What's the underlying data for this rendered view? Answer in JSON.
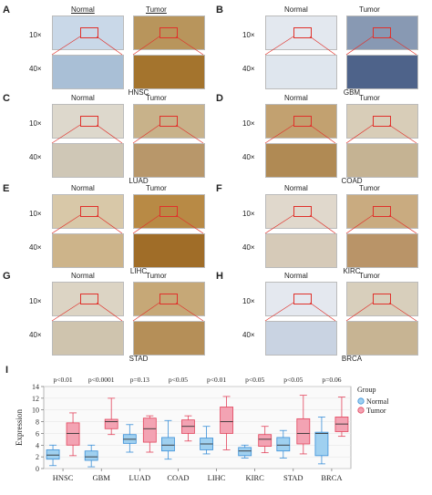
{
  "colors": {
    "normal_fill": "#9fd0f0",
    "normal_edge": "#3a8fd8",
    "tumor_fill": "#f3a3b3",
    "tumor_edge": "#e2445c",
    "zoom_line": "#e0312b",
    "grid": "#e6e6e6"
  },
  "panels": [
    {
      "letter": "A",
      "normal": "Normal",
      "tumor": "Tumor",
      "mag_low": "10×",
      "mag_high": "40×",
      "tissue": "HNSC",
      "normal_tone": "#c9d8e8",
      "tumor_tone": "#b8955c",
      "normal_zoom_tone": "#a9bfd6",
      "tumor_zoom_tone": "#a4742d"
    },
    {
      "letter": "B",
      "normal": "Normal",
      "tumor": "Tumor",
      "mag_low": "10×",
      "mag_high": "40×",
      "tissue": "GBM",
      "normal_tone": "#e3e8ef",
      "tumor_tone": "#8899b3",
      "normal_zoom_tone": "#dfe6ee",
      "tumor_zoom_tone": "#4e638a"
    },
    {
      "letter": "C",
      "normal": "Normal",
      "tumor": "Tumor",
      "mag_low": "10×",
      "mag_high": "40×",
      "tissue": "LUAD",
      "normal_tone": "#ddd8cc",
      "tumor_tone": "#c8b28a",
      "normal_zoom_tone": "#cfc7b6",
      "tumor_zoom_tone": "#b8976a"
    },
    {
      "letter": "D",
      "normal": "Normal",
      "tumor": "Tumor",
      "mag_low": "10×",
      "mag_high": "40×",
      "tissue": "COAD",
      "normal_tone": "#c2a170",
      "tumor_tone": "#d8cdb8",
      "normal_zoom_tone": "#b08a54",
      "tumor_zoom_tone": "#c5b393"
    },
    {
      "letter": "E",
      "normal": "Normal",
      "tumor": "Tumor",
      "mag_low": "10×",
      "mag_high": "40×",
      "tissue": "LIHC",
      "normal_tone": "#d8c8a8",
      "tumor_tone": "#b88a45",
      "normal_zoom_tone": "#cdb48a",
      "tumor_zoom_tone": "#a06d28"
    },
    {
      "letter": "F",
      "normal": "Normal",
      "tumor": "Tumor",
      "mag_low": "10×",
      "mag_high": "40×",
      "tissue": "KIRC",
      "normal_tone": "#e0d8cc",
      "tumor_tone": "#c9ab80",
      "normal_zoom_tone": "#d6cab8",
      "tumor_zoom_tone": "#b99468"
    },
    {
      "letter": "G",
      "normal": "Normal",
      "tumor": "Tumor",
      "mag_low": "10×",
      "mag_high": "40×",
      "tissue": "STAD",
      "normal_tone": "#dcd4c4",
      "tumor_tone": "#c6a877",
      "normal_zoom_tone": "#cfc4ae",
      "tumor_zoom_tone": "#b58f58"
    },
    {
      "letter": "H",
      "normal": "Normal",
      "tumor": "Tumor",
      "mag_low": "10×",
      "mag_high": "40×",
      "tissue": "BRCA",
      "normal_tone": "#e4e8ef",
      "tumor_tone": "#d8cfbc",
      "normal_zoom_tone": "#c9d3e2",
      "tumor_zoom_tone": "#c7b493"
    }
  ],
  "chart_data": {
    "type": "box",
    "letter": "I",
    "ylabel": "Expression",
    "ylim": [
      0,
      14
    ],
    "yticks": [
      0,
      2,
      4,
      6,
      8,
      10,
      12,
      14
    ],
    "grid": true,
    "legend": {
      "title": "Group",
      "placement": "right",
      "entries": [
        "Normal",
        "Tumor"
      ]
    },
    "categories": [
      "HNSC",
      "GBM",
      "LUAD",
      "COAD",
      "LIHC",
      "KIRC",
      "STAD",
      "BRCA"
    ],
    "pvalues": [
      "p<0.01",
      "p<0.0001",
      "p=0.13",
      "p<0.05",
      "p<0.01",
      "p<0.05",
      "p<0.05",
      "p=0.06"
    ],
    "series": [
      {
        "name": "Normal",
        "boxes": [
          {
            "min": 0.5,
            "q1": 1.6,
            "median": 2.3,
            "q3": 3.2,
            "max": 4.0
          },
          {
            "min": 0.3,
            "q1": 1.4,
            "median": 2.0,
            "q3": 3.0,
            "max": 4.0
          },
          {
            "min": 2.8,
            "q1": 4.3,
            "median": 5.0,
            "q3": 5.8,
            "max": 7.5
          },
          {
            "min": 1.6,
            "q1": 3.0,
            "median": 4.0,
            "q3": 5.3,
            "max": 8.2
          },
          {
            "min": 2.5,
            "q1": 3.2,
            "median": 4.2,
            "q3": 5.2,
            "max": 7.2
          },
          {
            "min": 1.8,
            "q1": 2.2,
            "median": 3.0,
            "q3": 3.6,
            "max": 4.0
          },
          {
            "min": 1.8,
            "q1": 3.0,
            "median": 4.0,
            "q3": 5.3,
            "max": 6.5
          },
          {
            "min": 0.8,
            "q1": 2.2,
            "median": 6.0,
            "q3": 6.2,
            "max": 8.8
          }
        ]
      },
      {
        "name": "Tumor",
        "boxes": [
          {
            "min": 2.2,
            "q1": 4.0,
            "median": 6.0,
            "q3": 7.8,
            "max": 9.5
          },
          {
            "min": 5.8,
            "q1": 6.8,
            "median": 8.0,
            "q3": 8.4,
            "max": 12.0
          },
          {
            "min": 2.8,
            "q1": 4.5,
            "median": 6.8,
            "q3": 8.6,
            "max": 9.0
          },
          {
            "min": 4.7,
            "q1": 6.0,
            "median": 7.2,
            "q3": 8.3,
            "max": 9.0
          },
          {
            "min": 3.2,
            "q1": 6.0,
            "median": 8.0,
            "q3": 10.5,
            "max": 12.3
          },
          {
            "min": 2.7,
            "q1": 3.8,
            "median": 5.0,
            "q3": 5.8,
            "max": 7.2
          },
          {
            "min": 2.5,
            "q1": 4.2,
            "median": 6.0,
            "q3": 8.5,
            "max": 12.5
          },
          {
            "min": 5.5,
            "q1": 6.3,
            "median": 7.6,
            "q3": 8.8,
            "max": 12.2
          }
        ]
      }
    ]
  }
}
